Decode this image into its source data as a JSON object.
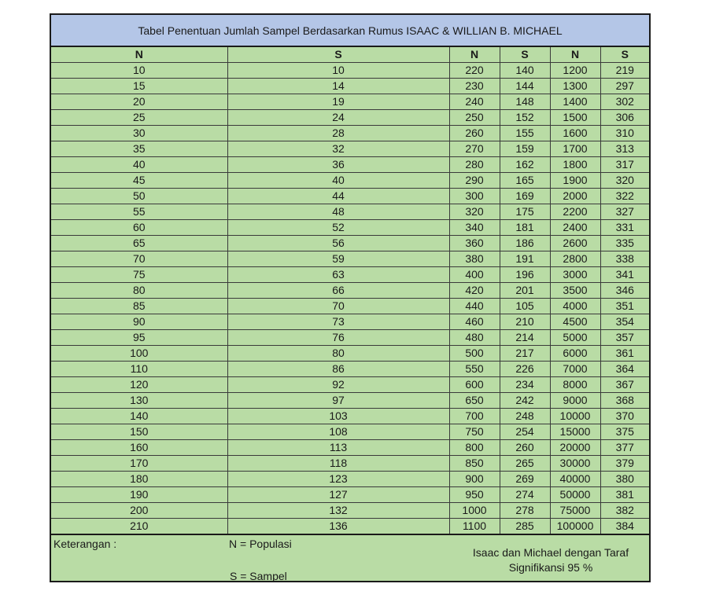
{
  "title": "Tabel Penentuan Jumlah Sampel Berdasarkan Rumus ISAAC & WILLIAN B. MICHAEL",
  "headers": [
    "N",
    "S",
    "N",
    "S",
    "N",
    "S"
  ],
  "rows": [
    [
      "10",
      "10",
      "220",
      "140",
      "1200",
      "219"
    ],
    [
      "15",
      "14",
      "230",
      "144",
      "1300",
      "297"
    ],
    [
      "20",
      "19",
      "240",
      "148",
      "1400",
      "302"
    ],
    [
      "25",
      "24",
      "250",
      "152",
      "1500",
      "306"
    ],
    [
      "30",
      "28",
      "260",
      "155",
      "1600",
      "310"
    ],
    [
      "35",
      "32",
      "270",
      "159",
      "1700",
      "313"
    ],
    [
      "40",
      "36",
      "280",
      "162",
      "1800",
      "317"
    ],
    [
      "45",
      "40",
      "290",
      "165",
      "1900",
      "320"
    ],
    [
      "50",
      "44",
      "300",
      "169",
      "2000",
      "322"
    ],
    [
      "55",
      "48",
      "320",
      "175",
      "2200",
      "327"
    ],
    [
      "60",
      "52",
      "340",
      "181",
      "2400",
      "331"
    ],
    [
      "65",
      "56",
      "360",
      "186",
      "2600",
      "335"
    ],
    [
      "70",
      "59",
      "380",
      "191",
      "2800",
      "338"
    ],
    [
      "75",
      "63",
      "400",
      "196",
      "3000",
      "341"
    ],
    [
      "80",
      "66",
      "420",
      "201",
      "3500",
      "346"
    ],
    [
      "85",
      "70",
      "440",
      "105",
      "4000",
      "351"
    ],
    [
      "90",
      "73",
      "460",
      "210",
      "4500",
      "354"
    ],
    [
      "95",
      "76",
      "480",
      "214",
      "5000",
      "357"
    ],
    [
      "100",
      "80",
      "500",
      "217",
      "6000",
      "361"
    ],
    [
      "110",
      "86",
      "550",
      "226",
      "7000",
      "364"
    ],
    [
      "120",
      "92",
      "600",
      "234",
      "8000",
      "367"
    ],
    [
      "130",
      "97",
      "650",
      "242",
      "9000",
      "368"
    ],
    [
      "140",
      "103",
      "700",
      "248",
      "10000",
      "370"
    ],
    [
      "150",
      "108",
      "750",
      "254",
      "15000",
      "375"
    ],
    [
      "160",
      "113",
      "800",
      "260",
      "20000",
      "377"
    ],
    [
      "170",
      "118",
      "850",
      "265",
      "30000",
      "379"
    ],
    [
      "180",
      "123",
      "900",
      "269",
      "40000",
      "380"
    ],
    [
      "190",
      "127",
      "950",
      "274",
      "50000",
      "381"
    ],
    [
      "200",
      "132",
      "1000",
      "278",
      "75000",
      "382"
    ],
    [
      "210",
      "136",
      "1100",
      "285",
      "100000",
      "384"
    ]
  ],
  "footer": {
    "note_label": "Keterangan :",
    "legend_n": "N   =    Populasi",
    "legend_s": "S    =    Sampel",
    "significance_line1": "Isaac dan Michael dengan Taraf",
    "significance_line2": "Signifikansi 95 %"
  },
  "colors": {
    "title_background": "#b4c6e7",
    "table_background": "#b9dca5",
    "border": "#1a1a1a"
  }
}
